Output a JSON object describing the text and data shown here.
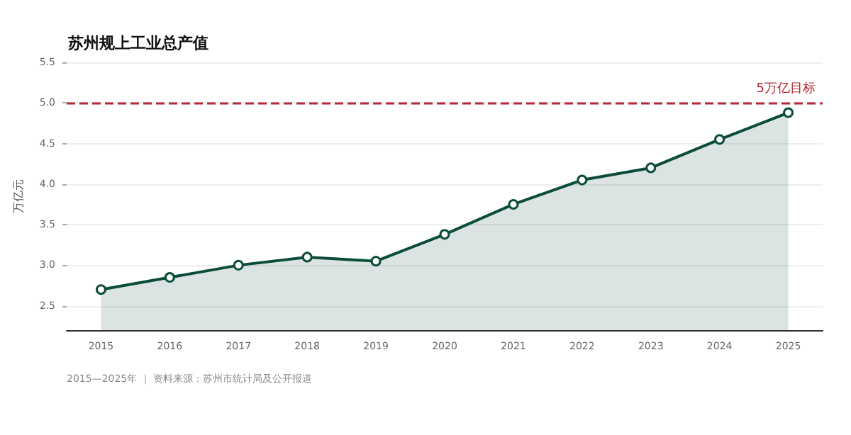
{
  "chart_data": {
    "type": "area",
    "title": "苏州规上工业总产值",
    "ylabel": "万亿元",
    "categories": [
      "2015",
      "2016",
      "2017",
      "2018",
      "2019",
      "2020",
      "2021",
      "2022",
      "2023",
      "2024",
      "2025"
    ],
    "series": [
      {
        "color": "#0b4d3a",
        "values": [
          2.7,
          2.85,
          3.0,
          3.1,
          3.05,
          3.38,
          3.75,
          4.05,
          4.2,
          4.55,
          4.88
        ]
      }
    ],
    "ylim": [
      2.2,
      5.5
    ],
    "yticks": [
      2.5,
      {
        "value": 3,
        "label": "3.0"
      },
      3.5,
      {
        "value": 4,
        "label": "4.0"
      },
      4.5,
      {
        "value": 5,
        "label": "5.0"
      },
      5.5
    ],
    "ref_lines": [
      {
        "axis": "y",
        "value": 5.0,
        "label": "5万亿目标",
        "color": "#b22a35",
        "line_style": "dashed"
      }
    ],
    "grid": "y",
    "marker": "circle",
    "annotations": [
      "2015—2025年 ｜ 资料来源：苏州市统计局及公开报道"
    ]
  }
}
